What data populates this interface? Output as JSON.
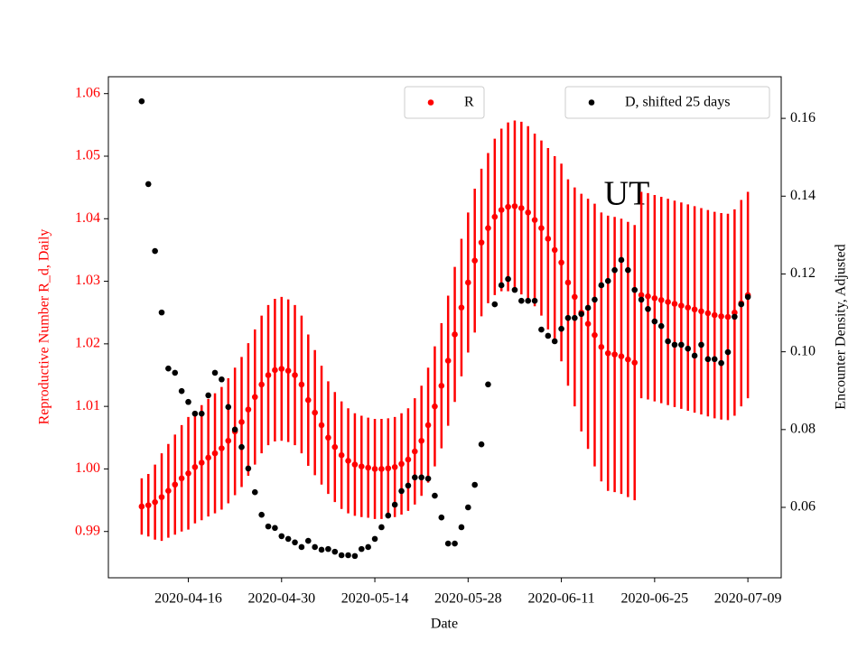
{
  "chart_data": {
    "type": "scatter",
    "annotation": "UT",
    "xlabel": "Date",
    "ylabel": "Reproductive Number R_d, Daily",
    "y2label": "Encounter Density, Adjusted",
    "x": [
      "2020-04-09",
      "2020-04-10",
      "2020-04-11",
      "2020-04-12",
      "2020-04-13",
      "2020-04-14",
      "2020-04-15",
      "2020-04-16",
      "2020-04-17",
      "2020-04-18",
      "2020-04-19",
      "2020-04-20",
      "2020-04-21",
      "2020-04-22",
      "2020-04-23",
      "2020-04-24",
      "2020-04-25",
      "2020-04-26",
      "2020-04-27",
      "2020-04-28",
      "2020-04-29",
      "2020-04-30",
      "2020-05-01",
      "2020-05-02",
      "2020-05-03",
      "2020-05-04",
      "2020-05-05",
      "2020-05-06",
      "2020-05-07",
      "2020-05-08",
      "2020-05-09",
      "2020-05-10",
      "2020-05-11",
      "2020-05-12",
      "2020-05-13",
      "2020-05-14",
      "2020-05-15",
      "2020-05-16",
      "2020-05-17",
      "2020-05-18",
      "2020-05-19",
      "2020-05-20",
      "2020-05-21",
      "2020-05-22",
      "2020-05-23",
      "2020-05-24",
      "2020-05-25",
      "2020-05-26",
      "2020-05-27",
      "2020-05-28",
      "2020-05-29",
      "2020-05-30",
      "2020-05-31",
      "2020-06-01",
      "2020-06-02",
      "2020-06-03",
      "2020-06-04",
      "2020-06-05",
      "2020-06-06",
      "2020-06-07",
      "2020-06-08",
      "2020-06-09",
      "2020-06-10",
      "2020-06-11",
      "2020-06-12",
      "2020-06-13",
      "2020-06-14",
      "2020-06-15",
      "2020-06-16",
      "2020-06-17",
      "2020-06-18",
      "2020-06-19",
      "2020-06-20",
      "2020-06-21",
      "2020-06-22",
      "2020-06-23",
      "2020-06-24",
      "2020-06-25",
      "2020-06-26",
      "2020-06-27",
      "2020-06-28",
      "2020-06-29",
      "2020-06-30",
      "2020-07-01",
      "2020-07-02",
      "2020-07-03",
      "2020-07-04",
      "2020-07-05",
      "2020-07-06",
      "2020-07-07",
      "2020-07-08",
      "2020-07-09"
    ],
    "xlim": [
      "2020-04-04",
      "2020-07-14"
    ],
    "xticks": [
      "2020-04-16",
      "2020-04-30",
      "2020-05-14",
      "2020-05-28",
      "2020-06-11",
      "2020-06-25",
      "2020-07-09"
    ],
    "ylim": [
      0.9826,
      1.0627
    ],
    "yticks": [
      0.99,
      {
        "value": 1,
        "label": "1.00"
      },
      1.01,
      1.02,
      1.03,
      1.04,
      1.05,
      1.06
    ],
    "y2lim": [
      0.0419,
      0.1707
    ],
    "y2ticks": [
      0.06,
      0.08,
      {
        "value": 0.1,
        "label": "0.10"
      },
      0.12,
      0.14,
      0.16
    ],
    "series": [
      {
        "name": "R",
        "color": "red",
        "values": [
          0.994,
          0.9942,
          0.9947,
          0.9955,
          0.9965,
          0.9975,
          0.9985,
          0.9993,
          1.0003,
          1.001,
          1.0018,
          1.0025,
          1.0033,
          1.0045,
          1.006,
          1.0075,
          1.0095,
          1.0115,
          1.0135,
          1.015,
          1.0158,
          1.016,
          1.0157,
          1.015,
          1.0135,
          1.011,
          1.009,
          1.007,
          1.005,
          1.0035,
          1.0022,
          1.0013,
          1.0007,
          1.0004,
          1.0002,
          1.0,
          1.0,
          1.0001,
          1.0003,
          1.0008,
          1.0015,
          1.0028,
          1.0045,
          1.007,
          1.01,
          1.0133,
          1.0173,
          1.0215,
          1.0258,
          1.0298,
          1.0333,
          1.0362,
          1.0385,
          1.0403,
          1.0414,
          1.0419,
          1.042,
          1.0417,
          1.041,
          1.0398,
          1.0385,
          1.0368,
          1.035,
          1.033,
          1.0298,
          1.0275,
          1.025,
          1.0232,
          1.0214,
          1.0195,
          1.0185,
          1.0183,
          1.018,
          1.0175,
          1.017,
          1.0278,
          1.0276,
          1.0273,
          1.027,
          1.0267,
          1.0264,
          1.0261,
          1.0258,
          1.0255,
          1.0252,
          1.0249,
          1.0246,
          1.0244,
          1.0243,
          1.025,
          1.0265,
          1.0278
        ],
        "errors": [
          0.0045,
          0.005,
          0.006,
          0.007,
          0.0075,
          0.008,
          0.0085,
          0.009,
          0.009,
          0.0092,
          0.0094,
          0.0096,
          0.0098,
          0.01,
          0.0102,
          0.0104,
          0.0106,
          0.0108,
          0.011,
          0.0112,
          0.0114,
          0.0115,
          0.0114,
          0.0112,
          0.011,
          0.0105,
          0.01,
          0.0095,
          0.009,
          0.0088,
          0.0086,
          0.0084,
          0.0082,
          0.0081,
          0.008,
          0.008,
          0.008,
          0.008,
          0.008,
          0.0081,
          0.0082,
          0.0085,
          0.0088,
          0.0092,
          0.0096,
          0.01,
          0.0104,
          0.0108,
          0.011,
          0.0112,
          0.0115,
          0.0118,
          0.012,
          0.0125,
          0.013,
          0.0135,
          0.0137,
          0.0138,
          0.0138,
          0.0138,
          0.014,
          0.0145,
          0.015,
          0.0158,
          0.0165,
          0.0175,
          0.019,
          0.02,
          0.021,
          0.0215,
          0.022,
          0.022,
          0.022,
          0.022,
          0.022,
          0.0165,
          0.0165,
          0.0165,
          0.0165,
          0.0165,
          0.0165,
          0.0165,
          0.0165,
          0.0165,
          0.0165,
          0.0165,
          0.0165,
          0.0165,
          0.0165,
          0.0165,
          0.0165,
          0.0165
        ]
      },
      {
        "name": "D, shifted 25 days",
        "color": "black",
        "axis": "y2",
        "values": [
          0.1644,
          0.1431,
          0.1259,
          0.1101,
          0.0957,
          0.0946,
          0.0899,
          0.0871,
          0.0841,
          0.0841,
          0.0888,
          0.0946,
          0.0929,
          0.0858,
          0.08,
          0.0755,
          0.07,
          0.0639,
          0.0581,
          0.0551,
          0.0547,
          0.0526,
          0.0519,
          0.051,
          0.0498,
          0.0514,
          0.0498,
          0.0491,
          0.0493,
          0.0486,
          0.0477,
          0.0477,
          0.0475,
          0.0493,
          0.0498,
          0.0519,
          0.0549,
          0.0579,
          0.0607,
          0.0642,
          0.0656,
          0.0677,
          0.0677,
          0.0674,
          0.063,
          0.0574,
          0.0507,
          0.0507,
          0.0549,
          0.06,
          0.0658,
          0.0762,
          0.0916,
          0.1122,
          0.1171,
          0.1187,
          0.1159,
          0.1131,
          0.1131,
          0.1131,
          0.1057,
          0.1041,
          0.1027,
          0.1059,
          0.1087,
          0.1087,
          0.1097,
          0.1113,
          0.1134,
          0.1171,
          0.1182,
          0.121,
          0.1236,
          0.121,
          0.1159,
          0.1134,
          0.111,
          0.1078,
          0.1066,
          0.1027,
          0.1018,
          0.1018,
          0.1008,
          0.099,
          0.1018,
          0.0981,
          0.0981,
          0.0971,
          0.0999,
          0.109,
          0.1122,
          0.1141
        ]
      }
    ]
  }
}
